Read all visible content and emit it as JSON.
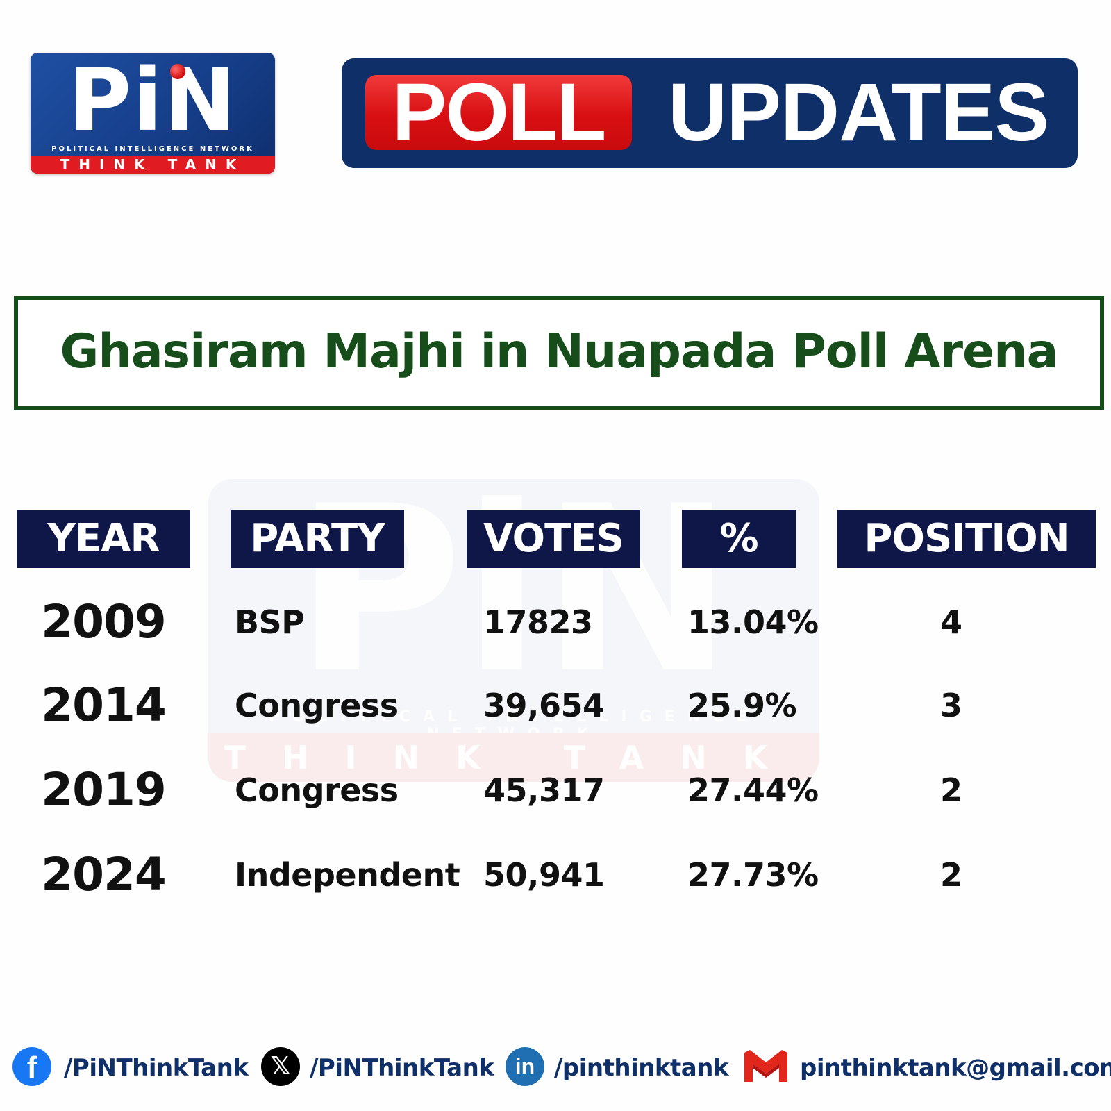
{
  "logo": {
    "word": "PiN",
    "subtitle": "POLITICAL INTELLIGENCE NETWORK",
    "band": "THINK TANK"
  },
  "banner": {
    "poll": "POLL",
    "updates": "UPDATES"
  },
  "title": "Ghasiram Majhi in Nuapada Poll Arena",
  "table": {
    "headers": [
      "YEAR",
      "PARTY",
      "VOTES",
      "%",
      "POSITION"
    ],
    "rows": [
      {
        "year": "2009",
        "party": "BSP",
        "votes": "17823",
        "pct": "13.04%",
        "position": "4"
      },
      {
        "year": "2014",
        "party": "Congress",
        "votes": "39,654",
        "pct": "25.9%",
        "position": "3"
      },
      {
        "year": "2019",
        "party": "Congress",
        "votes": "45,317",
        "pct": "27.44%",
        "position": "2"
      },
      {
        "year": "2024",
        "party": "Independent",
        "votes": "50,941",
        "pct": "27.73%",
        "position": "2"
      }
    ]
  },
  "social": {
    "facebook": {
      "icon": "facebook-icon",
      "handle": "/PiNThinkTank"
    },
    "x": {
      "icon": "x-icon",
      "handle": "/PiNThinkTank"
    },
    "linkedin": {
      "icon": "linkedin-icon",
      "handle": "/pinthinktank"
    },
    "gmail": {
      "icon": "gmail-icon",
      "handle": "pinthinktank@gmail.com"
    }
  },
  "colors": {
    "brand_blue": "#0e2f67",
    "brand_red": "#e11b22",
    "title_green": "#174d1a",
    "header_navy": "#0f1648"
  }
}
